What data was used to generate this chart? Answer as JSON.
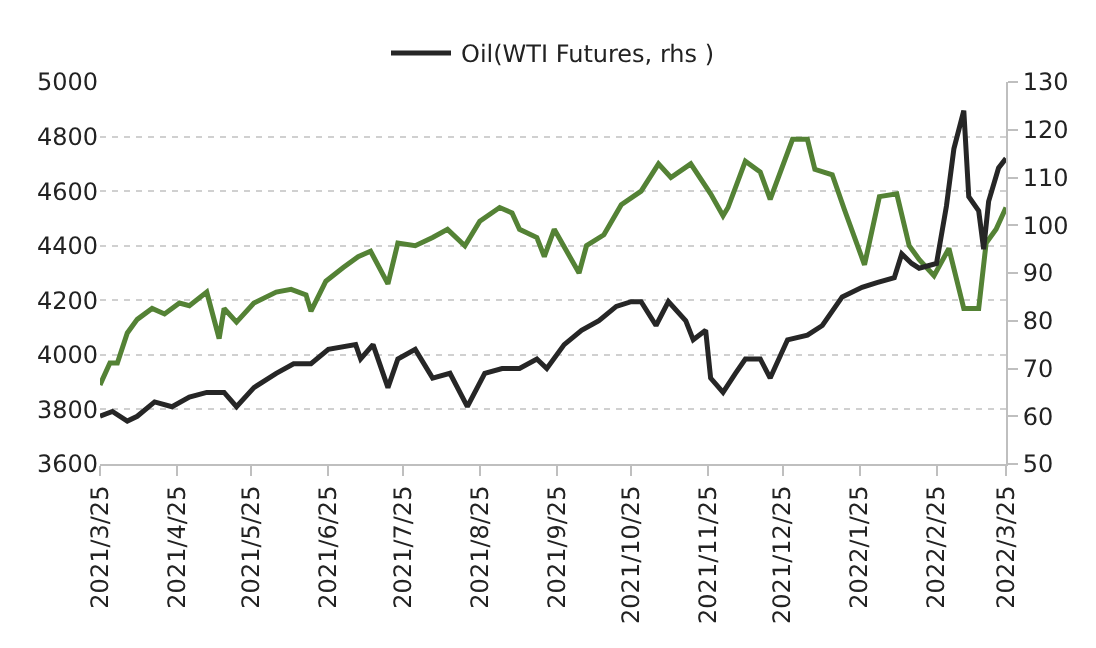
{
  "chart_data": {
    "type": "line",
    "legend": "top",
    "grid": "y",
    "marker": "none",
    "line_style": "solid",
    "xlim": [
      "2021-03-25",
      "2022-03-25"
    ],
    "xticks": [
      {
        "value": "2021-03-25",
        "label": "2021/3/25"
      },
      {
        "value": "2021-04-25",
        "label": "2021/4/25"
      },
      {
        "value": "2021-05-25",
        "label": "2021/5/25"
      },
      {
        "value": "2021-06-25",
        "label": "2021/6/25"
      },
      {
        "value": "2021-07-25",
        "label": "2021/7/25"
      },
      {
        "value": "2021-08-25",
        "label": "2021/8/25"
      },
      {
        "value": "2021-09-25",
        "label": "2021/9/25"
      },
      {
        "value": "2021-10-25",
        "label": "2021/10/25"
      },
      {
        "value": "2021-11-25",
        "label": "2021/11/25"
      },
      {
        "value": "2021-12-25",
        "label": "2021/12/25"
      },
      {
        "value": "2022-01-25",
        "label": "2022/1/25"
      },
      {
        "value": "2022-02-25",
        "label": "2022/2/25"
      },
      {
        "value": "2022-03-25",
        "label": "2022/3/25"
      }
    ],
    "ylim": [
      3600,
      5000
    ],
    "yticks": [
      3600,
      3800,
      4000,
      4200,
      4400,
      4600,
      4800,
      5000
    ],
    "y2lim": [
      50,
      130
    ],
    "y2ticks": [
      50,
      60,
      70,
      80,
      90,
      100,
      110,
      120,
      130
    ],
    "series": [
      {
        "color": "#548235",
        "x": [
          "2021-03-25",
          "2021-03-29",
          "2021-04-01",
          "2021-04-05",
          "2021-04-09",
          "2021-04-15",
          "2021-04-20",
          "2021-04-26",
          "2021-04-30",
          "2021-05-07",
          "2021-05-12",
          "2021-05-14",
          "2021-05-19",
          "2021-05-26",
          "2021-06-04",
          "2021-06-10",
          "2021-06-16",
          "2021-06-18",
          "2021-06-24",
          "2021-07-01",
          "2021-07-07",
          "2021-07-12",
          "2021-07-19",
          "2021-07-23",
          "2021-07-30",
          "2021-08-06",
          "2021-08-12",
          "2021-08-19",
          "2021-08-25",
          "2021-09-02",
          "2021-09-07",
          "2021-09-10",
          "2021-09-17",
          "2021-09-20",
          "2021-09-24",
          "2021-10-04",
          "2021-10-07",
          "2021-10-14",
          "2021-10-21",
          "2021-10-29",
          "2021-11-05",
          "2021-11-10",
          "2021-11-18",
          "2021-11-26",
          "2021-12-01",
          "2021-12-03",
          "2021-12-10",
          "2021-12-16",
          "2021-12-20",
          "2021-12-29",
          "2022-01-04",
          "2022-01-07",
          "2022-01-14",
          "2022-01-19",
          "2022-01-27",
          "2022-02-02",
          "2022-02-09",
          "2022-02-14",
          "2022-02-18",
          "2022-02-24",
          "2022-03-02",
          "2022-03-08",
          "2022-03-14",
          "2022-03-17",
          "2022-03-21",
          "2022-03-25"
        ],
        "values": [
          3890,
          3970,
          3970,
          4080,
          4130,
          4170,
          4150,
          4190,
          4180,
          4230,
          4060,
          4170,
          4120,
          4190,
          4230,
          4240,
          4220,
          4160,
          4270,
          4320,
          4360,
          4380,
          4260,
          4410,
          4400,
          4430,
          4460,
          4400,
          4490,
          4540,
          4520,
          4460,
          4430,
          4360,
          4460,
          4300,
          4400,
          4440,
          4550,
          4600,
          4700,
          4650,
          4700,
          4590,
          4510,
          4540,
          4710,
          4670,
          4570,
          4790,
          4790,
          4680,
          4660,
          4530,
          4330,
          4580,
          4590,
          4400,
          4350,
          4290,
          4390,
          4170,
          4170,
          4410,
          4460,
          4540
        ]
      },
      {
        "name": "Oil(WTI Futures, rhs )",
        "color": "#262626",
        "axis": "y2",
        "x": [
          "2021-03-25",
          "2021-03-30",
          "2021-04-05",
          "2021-04-09",
          "2021-04-16",
          "2021-04-23",
          "2021-04-30",
          "2021-05-07",
          "2021-05-14",
          "2021-05-19",
          "2021-05-26",
          "2021-06-04",
          "2021-06-11",
          "2021-06-18",
          "2021-06-25",
          "2021-07-06",
          "2021-07-08",
          "2021-07-13",
          "2021-07-19",
          "2021-07-23",
          "2021-07-30",
          "2021-08-06",
          "2021-08-13",
          "2021-08-20",
          "2021-08-27",
          "2021-09-03",
          "2021-09-10",
          "2021-09-17",
          "2021-09-21",
          "2021-09-28",
          "2021-10-05",
          "2021-10-12",
          "2021-10-19",
          "2021-10-25",
          "2021-10-29",
          "2021-11-04",
          "2021-11-09",
          "2021-11-16",
          "2021-11-19",
          "2021-11-24",
          "2021-11-26",
          "2021-12-01",
          "2021-12-06",
          "2021-12-10",
          "2021-12-16",
          "2021-12-20",
          "2021-12-27",
          "2022-01-04",
          "2022-01-10",
          "2022-01-18",
          "2022-01-26",
          "2022-02-01",
          "2022-02-08",
          "2022-02-11",
          "2022-02-15",
          "2022-02-18",
          "2022-02-25",
          "2022-03-01",
          "2022-03-04",
          "2022-03-08",
          "2022-03-10",
          "2022-03-14",
          "2022-03-16",
          "2022-03-18",
          "2022-03-22",
          "2022-03-25"
        ],
        "values": [
          60,
          61,
          59,
          60,
          63,
          62,
          64,
          65,
          65,
          62,
          66,
          69,
          71,
          71,
          74,
          75,
          72,
          75,
          66,
          72,
          74,
          68,
          69,
          62,
          69,
          70,
          70,
          72,
          70,
          75,
          78,
          80,
          83,
          84,
          84,
          79,
          84,
          80,
          76,
          78,
          68,
          65,
          69,
          72,
          72,
          68,
          76,
          77,
          79,
          85,
          87,
          88,
          89,
          94,
          92,
          91,
          92,
          104,
          116,
          124,
          106,
          103,
          95,
          105,
          112,
          114
        ]
      }
    ]
  }
}
